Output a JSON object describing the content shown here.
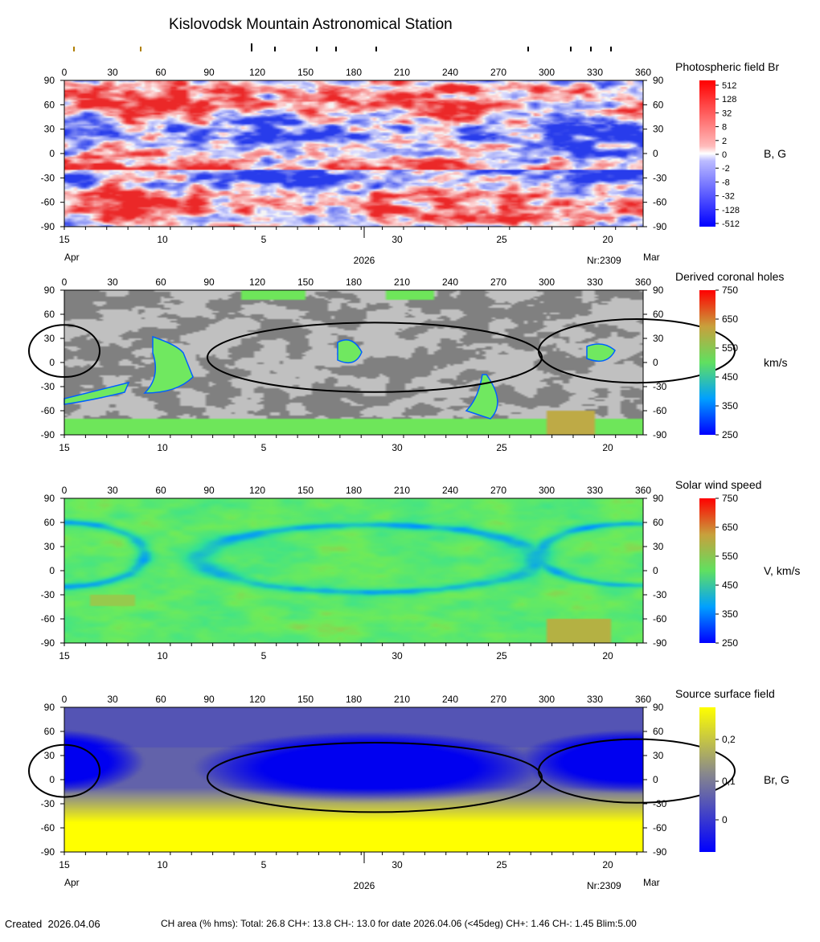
{
  "page": {
    "title": "Kislovodsk Mountain Astronomical Station",
    "footer_created_label": "Created",
    "footer_created_date": "2026.04.06",
    "footer_stats": "CH area (% hms): Total: 26.8 CH+: 13.8   CH-: 13.0 for date 2026.04.06 (<45deg) CH+: 1.46    CH-: 1.45 Blim:5.00"
  },
  "axes": {
    "longitude_ticks": [
      "0",
      "30",
      "60",
      "90",
      "120",
      "150",
      "180",
      "210",
      "240",
      "270",
      "300",
      "330",
      "360"
    ],
    "latitude_ticks": [
      "90",
      "60",
      "30",
      "0",
      "-30",
      "-60",
      "-90"
    ],
    "date_ticks": [
      {
        "label": "15",
        "lon": 0
      },
      {
        "label": "10",
        "lon": 61
      },
      {
        "label": "5",
        "lon": 124
      },
      {
        "label": "30",
        "lon": 207
      },
      {
        "label": "25",
        "lon": 272
      },
      {
        "label": "20",
        "lon": 338
      }
    ],
    "month_left": "Apr",
    "month_right": "Mar",
    "year": "2026",
    "rotation": "Nr:2309"
  },
  "chart_data": [
    {
      "type": "heatmap",
      "title": "Photospheric field Br",
      "colorbar_label": "B, G",
      "colorbar_ticks": [
        "512",
        "128",
        "32",
        "8",
        "2",
        "0",
        "-2",
        "-8",
        "-32",
        "-128",
        "-512"
      ],
      "colors": {
        "positive": "#ff2020",
        "negative": "#2020ff",
        "neutral": "#ffffff"
      },
      "xlim": [
        0,
        360
      ],
      "ylim": [
        -90,
        90
      ]
    },
    {
      "type": "heatmap",
      "title": "Derived coronal holes",
      "colorbar_label": "km/s",
      "colorbar_ticks": [
        "750",
        "650",
        "550",
        "450",
        "350",
        "250"
      ],
      "xlim": [
        0,
        360
      ],
      "ylim": [
        -90,
        90
      ]
    },
    {
      "type": "heatmap",
      "title": "Solar wind speed",
      "colorbar_label": "V, km/s",
      "colorbar_ticks": [
        "750",
        "650",
        "550",
        "450",
        "350",
        "250"
      ],
      "xlim": [
        0,
        360
      ],
      "ylim": [
        -90,
        90
      ]
    },
    {
      "type": "heatmap",
      "title": "Source surface field",
      "colorbar_label": "Br, G",
      "colorbar_ticks": [
        "0,2",
        "0,1",
        "0"
      ],
      "colors": {
        "high": "#ffff00",
        "low": "#0000ff"
      },
      "xlim": [
        0,
        360
      ],
      "ylim": [
        -90,
        90
      ]
    }
  ]
}
